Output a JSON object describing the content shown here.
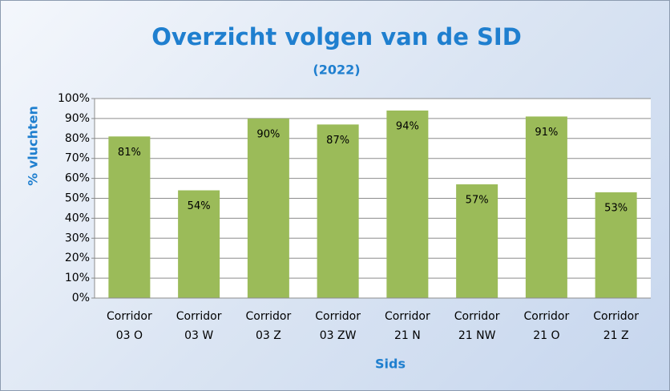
{
  "chart_data": {
    "type": "bar",
    "title": "Overzicht volgen van de SID",
    "subtitle": "(2022)",
    "x_label": "Sids",
    "y_label": "% vluchten",
    "categories": [
      "Corridor 03 O",
      "Corridor 03 W",
      "Corridor 03 Z",
      "Corridor 03 ZW",
      "Corridor 21 N",
      "Corridor 21 NW",
      "Corridor 21 O",
      "Corridor 21 Z"
    ],
    "values": [
      81,
      54,
      90,
      87,
      94,
      57,
      91,
      53
    ],
    "value_labels": [
      "81%",
      "54%",
      "90%",
      "87%",
      "94%",
      "57%",
      "91%",
      "53%"
    ],
    "color": "#9bbb59",
    "ylim": [
      0,
      100
    ],
    "yticks": [
      {
        "value": 0,
        "label": "0%"
      },
      {
        "value": 10,
        "label": "10%"
      },
      {
        "value": 20,
        "label": "20%"
      },
      {
        "value": 30,
        "label": "30%"
      },
      {
        "value": 40,
        "label": "40%"
      },
      {
        "value": 50,
        "label": "50%"
      },
      {
        "value": 60,
        "label": "60%"
      },
      {
        "value": 70,
        "label": "70%"
      },
      {
        "value": 80,
        "label": "80%"
      },
      {
        "value": 90,
        "label": "90%"
      },
      {
        "value": 100,
        "label": "100%"
      }
    ],
    "grid": true
  }
}
